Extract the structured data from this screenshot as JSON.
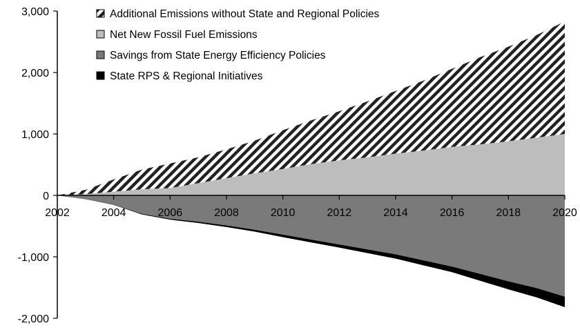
{
  "chart_data": {
    "type": "area",
    "title": "",
    "xlabel": "",
    "ylabel": "",
    "x": [
      2002,
      2003,
      2004,
      2005,
      2006,
      2007,
      2008,
      2009,
      2010,
      2011,
      2012,
      2013,
      2014,
      2015,
      2016,
      2017,
      2018,
      2019,
      2020
    ],
    "ylim": [
      -2000,
      3000
    ],
    "xlim": [
      2002,
      2020
    ],
    "y_ticks": [
      {
        "value": 3000,
        "label": "3,000"
      },
      {
        "value": 2000,
        "label": "2,000"
      },
      {
        "value": 1000,
        "label": "1,000"
      },
      {
        "value": 0,
        "label": "0"
      },
      {
        "value": -1000,
        "label": "-1,000"
      },
      {
        "value": -2000,
        "label": "-2,000"
      }
    ],
    "x_ticks": [
      {
        "value": 2002,
        "label": "2002"
      },
      {
        "value": 2004,
        "label": "2004"
      },
      {
        "value": 2006,
        "label": "2006"
      },
      {
        "value": 2008,
        "label": "2008"
      },
      {
        "value": 2010,
        "label": "2010"
      },
      {
        "value": 2012,
        "label": "2012"
      },
      {
        "value": 2014,
        "label": "2014"
      },
      {
        "value": 2016,
        "label": "2016"
      },
      {
        "value": 2018,
        "label": "2018"
      },
      {
        "value": 2020,
        "label": "2020"
      }
    ],
    "grid": false,
    "legend_position": "top",
    "series": [
      {
        "name": "Additional Emissions without State and Regional Policies",
        "pattern": "diagonal-stripes",
        "color": "#222222",
        "values": [
          0,
          90,
          260,
          420,
          520,
          620,
          750,
          890,
          1060,
          1220,
          1370,
          1530,
          1700,
          1870,
          2060,
          2250,
          2420,
          2610,
          2830
        ]
      },
      {
        "name": "Net New Fossil Fuel Emissions",
        "color": "#bdbdbd",
        "values": [
          0,
          20,
          60,
          100,
          120,
          200,
          280,
          360,
          430,
          510,
          570,
          620,
          680,
          730,
          790,
          830,
          880,
          940,
          1000
        ]
      },
      {
        "name": "Savings from State Energy Efficiency Policies",
        "color": "#7a7a7a",
        "values": [
          0,
          -60,
          -150,
          -300,
          -380,
          -430,
          -490,
          -560,
          -640,
          -720,
          -800,
          -880,
          -960,
          -1060,
          -1160,
          -1280,
          -1400,
          -1510,
          -1650
        ]
      },
      {
        "name": "State RPS & Regional Initiatives",
        "color": "#000000",
        "values": [
          0,
          -62,
          -155,
          -310,
          -395,
          -450,
          -515,
          -590,
          -680,
          -765,
          -850,
          -940,
          -1030,
          -1140,
          -1250,
          -1390,
          -1530,
          -1660,
          -1820
        ]
      }
    ]
  }
}
